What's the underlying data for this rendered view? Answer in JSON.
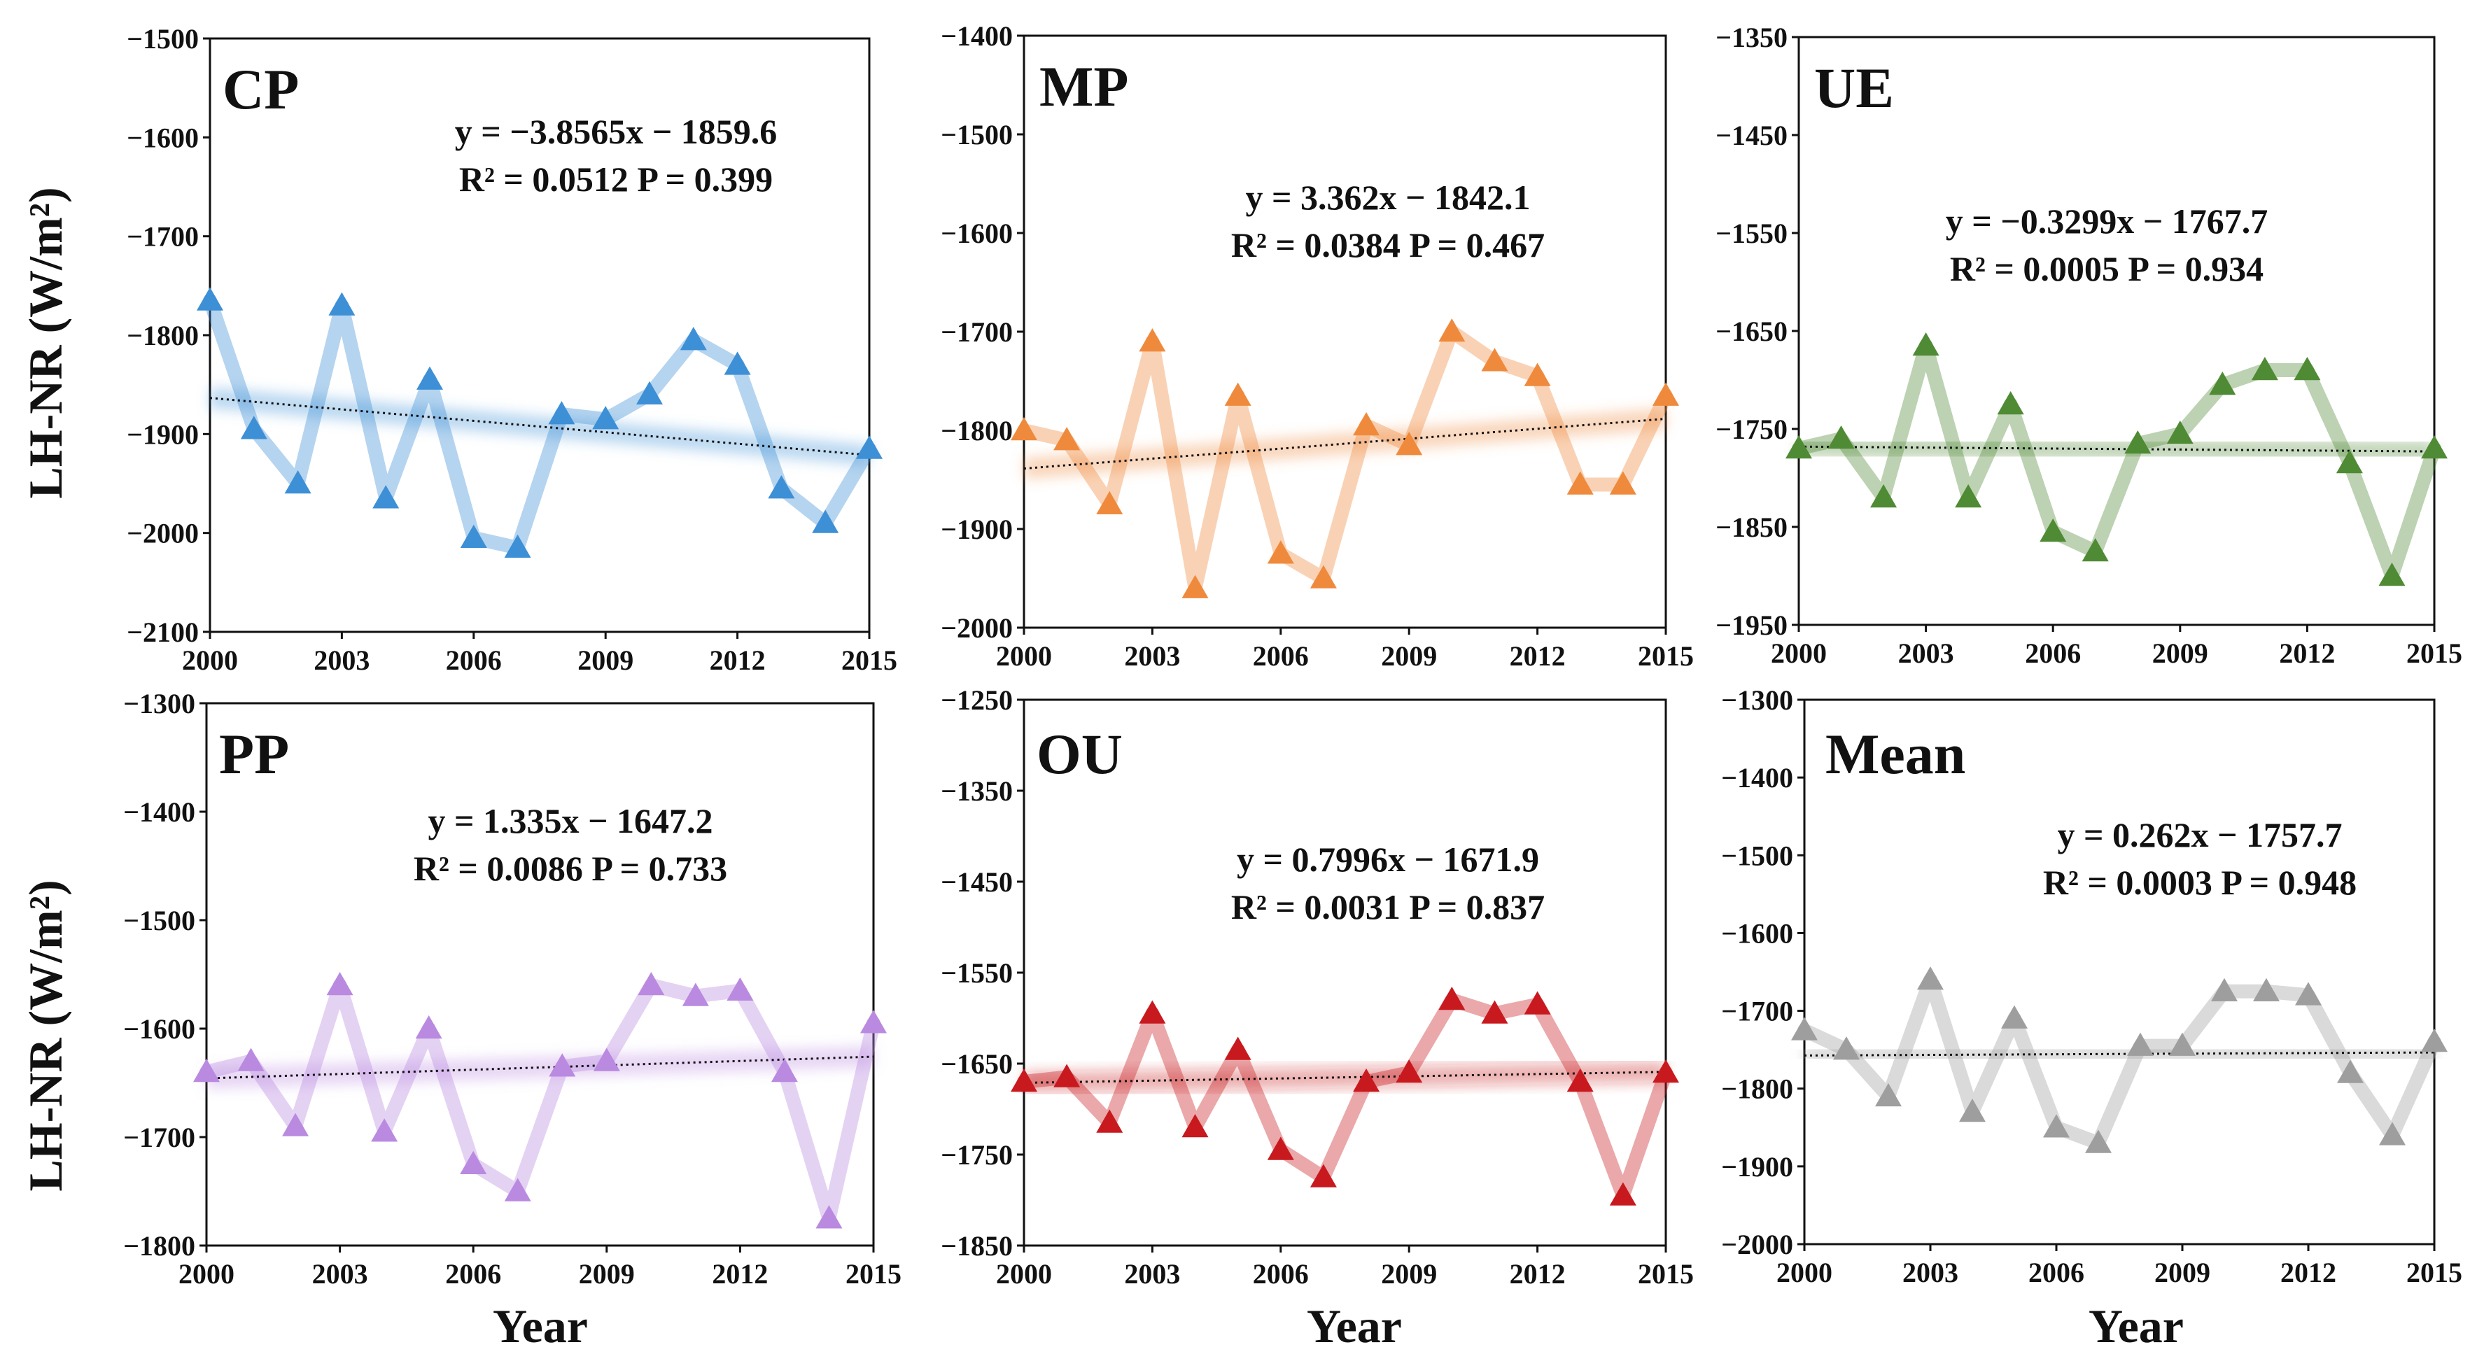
{
  "figure": {
    "ylabel": "LH-NR (W/m²)",
    "xlabel": "Year"
  },
  "chart_data": [
    {
      "type": "line",
      "panel": "CP",
      "color": "#3d8fd6",
      "equation": "y = −3.8565x − 1859.6",
      "stats": "R² = 0.0512 P = 0.399",
      "trend": {
        "slope": -3.8565,
        "intercept": -1859.6
      },
      "x": [
        2000,
        2001,
        2002,
        2003,
        2004,
        2005,
        2006,
        2007,
        2008,
        2009,
        2010,
        2011,
        2012,
        2013,
        2014,
        2015
      ],
      "values": [
        -1765,
        -1895,
        -1950,
        -1770,
        -1965,
        -1845,
        -2005,
        -2015,
        -1880,
        -1885,
        -1860,
        -1805,
        -1830,
        -1955,
        -1990,
        -1915
      ],
      "ylim": [
        -2100,
        -1500
      ],
      "yticks": [
        -1500,
        -1600,
        -1700,
        -1800,
        -1900,
        -2000,
        -2100
      ],
      "ytick_labels": [
        "−1500",
        "−1600",
        "−1700",
        "−1800",
        "−1900",
        "−2000",
        "−2100"
      ],
      "xlim": [
        2000,
        2015
      ],
      "xticks": [
        2000,
        2003,
        2006,
        2009,
        2012,
        2015
      ],
      "xtick_labels": [
        "2000",
        "2003",
        "2006",
        "2009",
        "2012",
        "2015"
      ]
    },
    {
      "type": "line",
      "panel": "MP",
      "color": "#ef8a3c",
      "equation": "y = 3.362x − 1842.1",
      "stats": "R² = 0.0384 P = 0.467",
      "trend": {
        "slope": 3.362,
        "intercept": -1842.1
      },
      "x": [
        2000,
        2001,
        2002,
        2003,
        2004,
        2005,
        2006,
        2007,
        2008,
        2009,
        2010,
        2011,
        2012,
        2013,
        2014,
        2015
      ],
      "values": [
        -1800,
        -1810,
        -1875,
        -1710,
        -1960,
        -1765,
        -1925,
        -1950,
        -1795,
        -1815,
        -1700,
        -1730,
        -1745,
        -1855,
        -1855,
        -1765
      ],
      "ylim": [
        -2000,
        -1400
      ],
      "yticks": [
        -1400,
        -1500,
        -1600,
        -1700,
        -1800,
        -1900,
        -2000
      ],
      "ytick_labels": [
        "−1400",
        "−1500",
        "−1600",
        "−1700",
        "−1800",
        "−1900",
        "−2000"
      ],
      "xlim": [
        2000,
        2015
      ],
      "xticks": [
        2000,
        2003,
        2006,
        2009,
        2012,
        2015
      ],
      "xtick_labels": [
        "2000",
        "2003",
        "2006",
        "2009",
        "2012",
        "2015"
      ]
    },
    {
      "type": "line",
      "panel": "UE",
      "color": "#4f8a34",
      "equation": "y = −0.3299x − 1767.7",
      "stats": "R² = 0.0005 P = 0.934",
      "trend": {
        "slope": -0.3299,
        "intercept": -1767.7
      },
      "x": [
        2000,
        2001,
        2002,
        2003,
        2004,
        2005,
        2006,
        2007,
        2008,
        2009,
        2010,
        2011,
        2012,
        2013,
        2014,
        2015
      ],
      "values": [
        -1770,
        -1760,
        -1820,
        -1665,
        -1820,
        -1725,
        -1855,
        -1875,
        -1765,
        -1755,
        -1705,
        -1690,
        -1690,
        -1785,
        -1900,
        -1770
      ],
      "ylim": [
        -1950,
        -1350
      ],
      "yticks": [
        -1350,
        -1450,
        -1550,
        -1650,
        -1750,
        -1850,
        -1950
      ],
      "ytick_labels": [
        "−1350",
        "−1450",
        "−1550",
        "−1650",
        "−1750",
        "−1850",
        "−1950"
      ],
      "xlim": [
        2000,
        2015
      ],
      "xticks": [
        2000,
        2003,
        2006,
        2009,
        2012,
        2015
      ],
      "xtick_labels": [
        "2000",
        "2003",
        "2006",
        "2009",
        "2012",
        "2015"
      ]
    },
    {
      "type": "line",
      "panel": "PP",
      "color": "#b98ae0",
      "equation": "y = 1.335x − 1647.2",
      "stats": "R² = 0.0086 P = 0.733",
      "trend": {
        "slope": 1.335,
        "intercept": -1647.2
      },
      "x": [
        2000,
        2001,
        2002,
        2003,
        2004,
        2005,
        2006,
        2007,
        2008,
        2009,
        2010,
        2011,
        2012,
        2013,
        2014,
        2015
      ],
      "values": [
        -1640,
        -1630,
        -1690,
        -1560,
        -1695,
        -1600,
        -1725,
        -1750,
        -1635,
        -1630,
        -1560,
        -1570,
        -1565,
        -1640,
        -1775,
        -1595
      ],
      "ylim": [
        -1800,
        -1300
      ],
      "yticks": [
        -1300,
        -1400,
        -1500,
        -1600,
        -1700,
        -1800
      ],
      "ytick_labels": [
        "−1300",
        "−1400",
        "−1500",
        "−1600",
        "−1700",
        "−1800"
      ],
      "xlim": [
        2000,
        2015
      ],
      "xticks": [
        2000,
        2003,
        2006,
        2009,
        2012,
        2015
      ],
      "xtick_labels": [
        "2000",
        "2003",
        "2006",
        "2009",
        "2012",
        "2015"
      ]
    },
    {
      "type": "line",
      "panel": "OU",
      "color": "#c8191f",
      "equation": "y = 0.7996x − 1671.9",
      "stats": "R² = 0.0031 P = 0.837",
      "trend": {
        "slope": 0.7996,
        "intercept": -1671.9
      },
      "x": [
        2000,
        2001,
        2002,
        2003,
        2004,
        2005,
        2006,
        2007,
        2008,
        2009,
        2010,
        2011,
        2012,
        2013,
        2014,
        2015
      ],
      "values": [
        -1670,
        -1665,
        -1715,
        -1595,
        -1720,
        -1635,
        -1745,
        -1775,
        -1670,
        -1660,
        -1580,
        -1595,
        -1585,
        -1670,
        -1795,
        -1660
      ],
      "ylim": [
        -1850,
        -1250
      ],
      "yticks": [
        -1250,
        -1350,
        -1450,
        -1550,
        -1650,
        -1750,
        -1850
      ],
      "ytick_labels": [
        "−1250",
        "−1350",
        "−1450",
        "−1550",
        "−1650",
        "−1750",
        "−1850"
      ],
      "xlim": [
        2000,
        2015
      ],
      "xticks": [
        2000,
        2003,
        2006,
        2009,
        2012,
        2015
      ],
      "xtick_labels": [
        "2000",
        "2003",
        "2006",
        "2009",
        "2012",
        "2015"
      ]
    },
    {
      "type": "line",
      "panel": "Mean",
      "color": "#9e9e9e",
      "equation": "y = 0.262x − 1757.7",
      "stats": "R² = 0.0003 P = 0.948",
      "trend": {
        "slope": 0.262,
        "intercept": -1757.7
      },
      "x": [
        2000,
        2001,
        2002,
        2003,
        2004,
        2005,
        2006,
        2007,
        2008,
        2009,
        2010,
        2011,
        2012,
        2013,
        2014,
        2015
      ],
      "values": [
        -1725,
        -1750,
        -1810,
        -1660,
        -1830,
        -1710,
        -1850,
        -1870,
        -1745,
        -1745,
        -1675,
        -1675,
        -1680,
        -1780,
        -1860,
        -1740
      ],
      "ylim": [
        -2000,
        -1300
      ],
      "yticks": [
        -1300,
        -1400,
        -1500,
        -1600,
        -1700,
        -1800,
        -1900,
        -2000
      ],
      "ytick_labels": [
        "−1300",
        "−1400",
        "−1500",
        "−1600",
        "−1700",
        "−1800",
        "−1900",
        "−2000"
      ],
      "xlim": [
        2000,
        2015
      ],
      "xticks": [
        2000,
        2003,
        2006,
        2009,
        2012,
        2015
      ],
      "xtick_labels": [
        "2000",
        "2003",
        "2006",
        "2009",
        "2012",
        "2015"
      ]
    }
  ]
}
